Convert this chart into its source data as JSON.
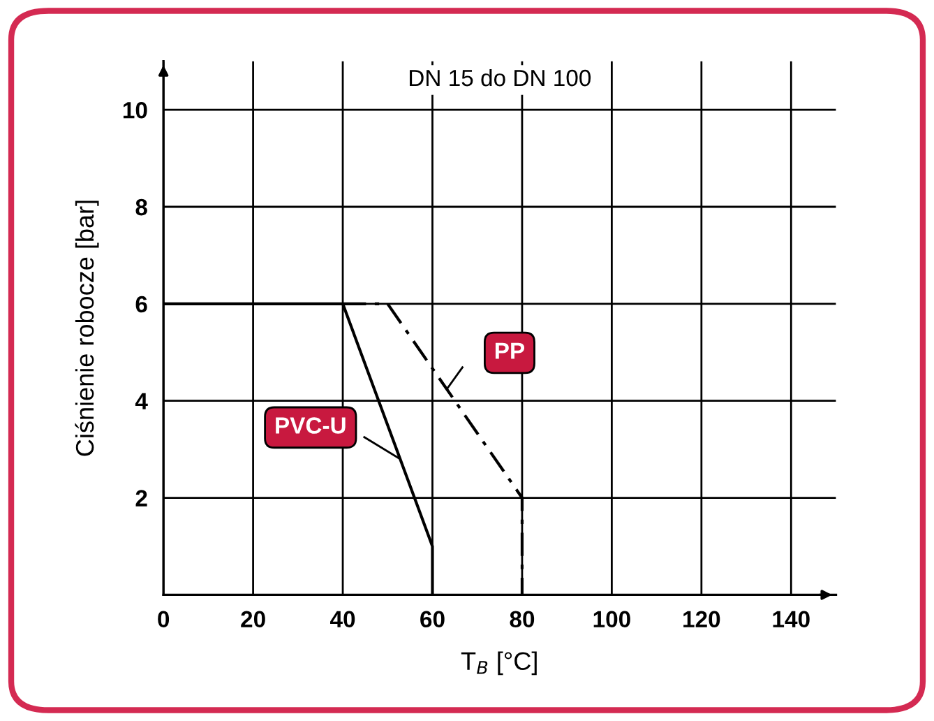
{
  "chart_data": {
    "type": "line",
    "title": "DN 15 do DN 100",
    "xlabel": "T$_{B}$ [°C]",
    "ylabel": "Ciśnienie robocze [bar]",
    "xlim": [
      0,
      150
    ],
    "ylim": [
      0,
      11
    ],
    "xticks": [
      0,
      20,
      40,
      60,
      80,
      100,
      120,
      140
    ],
    "yticks": [
      2,
      4,
      6,
      8,
      10
    ],
    "grid": true,
    "legend": false,
    "marker": "none",
    "series": [
      {
        "name": "PVC-U",
        "color": "#000000",
        "line_style": "solid",
        "x": [
          0,
          40,
          60,
          60
        ],
        "values": [
          6,
          6,
          1,
          0
        ]
      },
      {
        "name": "PP",
        "color": "#000000",
        "line_style": "dashed",
        "x": [
          40,
          50,
          80,
          80
        ],
        "values": [
          6,
          6,
          2,
          0
        ]
      }
    ]
  }
}
